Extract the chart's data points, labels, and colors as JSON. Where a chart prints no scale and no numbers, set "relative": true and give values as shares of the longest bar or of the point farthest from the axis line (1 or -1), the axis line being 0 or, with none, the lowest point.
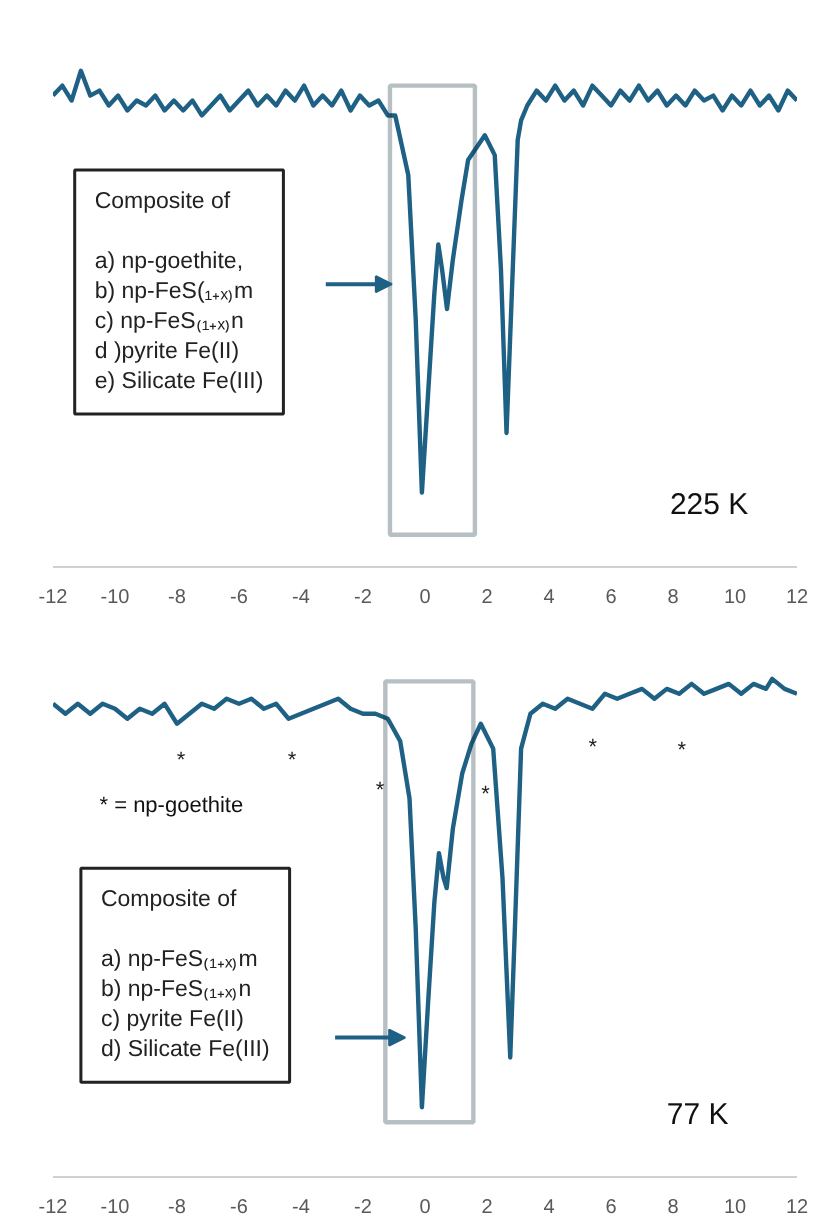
{
  "chart_data": [
    {
      "type": "line",
      "relative": true,
      "xlim": [
        -12,
        12
      ],
      "xticks": [
        -12,
        -10,
        -8,
        -6,
        -4,
        -2,
        0,
        2,
        4,
        6,
        8,
        10,
        12
      ],
      "grid": false,
      "x": [
        -12,
        -11.7,
        -11.4,
        -11.1,
        -10.8,
        -10.5,
        -10.2,
        -9.9,
        -9.6,
        -9.3,
        -9,
        -8.7,
        -8.4,
        -8.1,
        -7.8,
        -7.5,
        -7.2,
        -6.9,
        -6.6,
        -6.3,
        -6,
        -5.7,
        -5.4,
        -5.1,
        -4.8,
        -4.5,
        -4.2,
        -3.9,
        -3.6,
        -3.3,
        -3,
        -2.7,
        -2.4,
        -2.1,
        -1.8,
        -1.5,
        -1.2,
        -0.96,
        -0.54,
        -0.3,
        -0.1,
        0.1,
        0.3,
        0.43,
        0.55,
        0.71,
        0.9,
        1.18,
        1.39,
        1.93,
        2.25,
        2.45,
        2.63,
        2.8,
        2.99,
        3.1,
        3.3,
        3.6,
        3.9,
        4.2,
        4.5,
        4.8,
        5.1,
        5.4,
        5.7,
        6,
        6.3,
        6.6,
        6.9,
        7.2,
        7.5,
        7.8,
        8.1,
        8.4,
        8.7,
        9,
        9.3,
        9.6,
        9.9,
        10.2,
        10.5,
        10.8,
        11.1,
        11.4,
        11.7,
        12
      ],
      "series": [
        {
          "color": "#1f6085",
          "values": [
            0.95,
            0.97,
            0.94,
            1.0,
            0.95,
            0.96,
            0.93,
            0.95,
            0.92,
            0.94,
            0.93,
            0.95,
            0.92,
            0.94,
            0.92,
            0.94,
            0.91,
            0.93,
            0.95,
            0.92,
            0.94,
            0.96,
            0.93,
            0.95,
            0.93,
            0.96,
            0.94,
            0.97,
            0.93,
            0.95,
            0.93,
            0.96,
            0.92,
            0.95,
            0.93,
            0.94,
            0.91,
            0.91,
            0.79,
            0.5,
            0.15,
            0.35,
            0.55,
            0.65,
            0.6,
            0.52,
            0.62,
            0.74,
            0.82,
            0.87,
            0.83,
            0.6,
            0.27,
            0.55,
            0.86,
            0.9,
            0.93,
            0.96,
            0.94,
            0.97,
            0.94,
            0.96,
            0.93,
            0.97,
            0.95,
            0.93,
            0.96,
            0.94,
            0.97,
            0.94,
            0.96,
            0.93,
            0.95,
            0.93,
            0.96,
            0.94,
            0.95,
            0.92,
            0.95,
            0.93,
            0.96,
            0.93,
            0.95,
            0.92,
            0.96,
            0.94
          ]
        }
      ],
      "annotations": [
        "Composite of\n\na) np-goethite,\nb) np-FeS(₁₊ₓ₎m\nc) np-FeS₍₁₊ₓ₎n\nd )pyrite Fe(II)\ne) Silicate Fe(III)",
        "225 K"
      ]
    },
    {
      "type": "line",
      "relative": true,
      "xlim": [
        -12,
        12
      ],
      "xticks": [
        -12,
        -10,
        -8,
        -6,
        -4,
        -2,
        0,
        2,
        4,
        6,
        8,
        10,
        12
      ],
      "grid": false,
      "x": [
        -12,
        -11.6,
        -11.2,
        -10.8,
        -10.4,
        -10,
        -9.6,
        -9.2,
        -8.8,
        -8.4,
        -8,
        -7.6,
        -7.2,
        -6.8,
        -6.4,
        -6,
        -5.6,
        -5.2,
        -4.8,
        -4.4,
        -4,
        -3.6,
        -3.2,
        -2.8,
        -2.4,
        -2,
        -1.6,
        -1.2,
        -0.8,
        -0.5,
        -0.3,
        -0.1,
        0.1,
        0.3,
        0.45,
        0.6,
        0.7,
        0.9,
        1.2,
        1.5,
        1.8,
        2.2,
        2.5,
        2.75,
        2.9,
        3.1,
        3.4,
        3.8,
        4.2,
        4.6,
        5,
        5.4,
        5.8,
        6.2,
        6.6,
        7,
        7.4,
        7.8,
        8.2,
        8.6,
        9,
        9.4,
        9.8,
        10.2,
        10.6,
        11,
        11.2,
        11.6,
        12
      ],
      "series": [
        {
          "color": "#1f6085",
          "values": [
            0.95,
            0.93,
            0.95,
            0.93,
            0.95,
            0.94,
            0.92,
            0.94,
            0.93,
            0.95,
            0.91,
            0.93,
            0.95,
            0.94,
            0.96,
            0.95,
            0.96,
            0.94,
            0.95,
            0.92,
            0.93,
            0.94,
            0.95,
            0.96,
            0.94,
            0.93,
            0.93,
            0.92,
            0.875,
            0.76,
            0.5,
            0.14,
            0.35,
            0.55,
            0.65,
            0.6,
            0.58,
            0.7,
            0.81,
            0.87,
            0.91,
            0.86,
            0.6,
            0.24,
            0.5,
            0.86,
            0.93,
            0.95,
            0.94,
            0.96,
            0.95,
            0.94,
            0.97,
            0.96,
            0.97,
            0.98,
            0.96,
            0.98,
            0.97,
            0.99,
            0.97,
            0.98,
            0.99,
            0.97,
            0.99,
            0.98,
            1.0,
            0.98,
            0.97
          ]
        }
      ],
      "annotations": [
        "* = np-goethite",
        "Composite of\n\na) np-FeS₍₁₊ₓ₎m\nb) np-FeS₍₁₊ₓ₎n\nc) pyrite Fe(II)\nd) Silicate Fe(III)",
        "77 K",
        "*",
        "*",
        "*",
        "*",
        "*",
        "*"
      ]
    }
  ]
}
